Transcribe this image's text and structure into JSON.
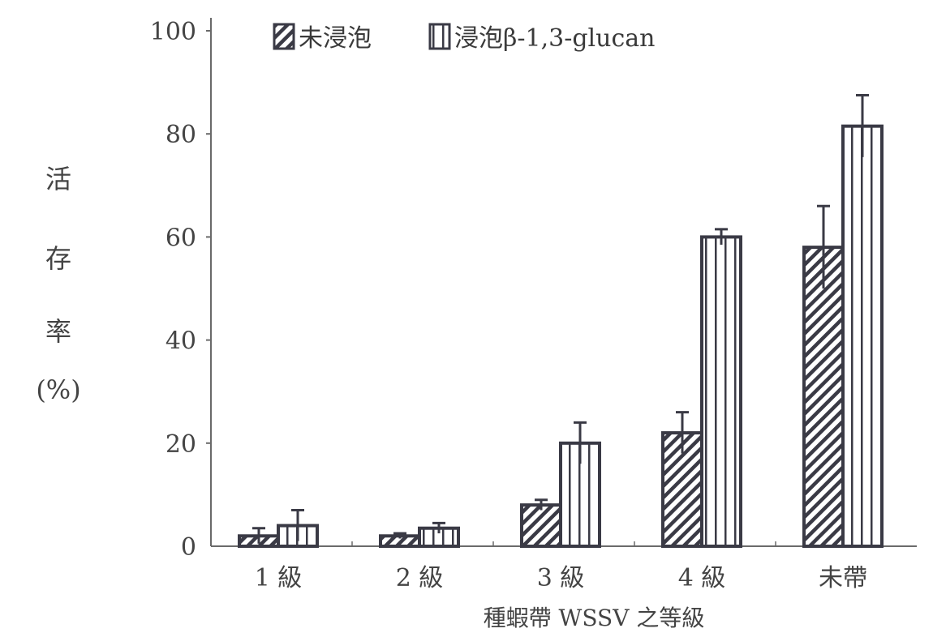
{
  "chart_data": {
    "type": "bar",
    "categories": [
      "1 級",
      "2 級",
      "3 級",
      "4 級",
      "未帶"
    ],
    "series": [
      {
        "name": "未浸泡",
        "pattern": "diagonal-hatch",
        "values": [
          2,
          2,
          8,
          22,
          58
        ],
        "errors": [
          1.5,
          0.5,
          1,
          4,
          8
        ]
      },
      {
        "name": "浸泡β-1,3-glucan",
        "pattern": "vertical-stripes",
        "values": [
          4,
          3.5,
          20,
          60,
          81.5
        ],
        "errors": [
          3,
          1,
          4,
          1.5,
          6
        ]
      }
    ],
    "ylim": [
      0,
      100
    ],
    "yticks": [
      0,
      20,
      40,
      60,
      80,
      100
    ],
    "ylabel_chars": [
      "活",
      "存",
      "率",
      "(%)"
    ],
    "xlabel": "種蝦帶 WSSV 之等級",
    "legend_position": "top-left",
    "grid": false,
    "colors": {
      "ink": "#3a3a45",
      "text": "#444444"
    }
  }
}
